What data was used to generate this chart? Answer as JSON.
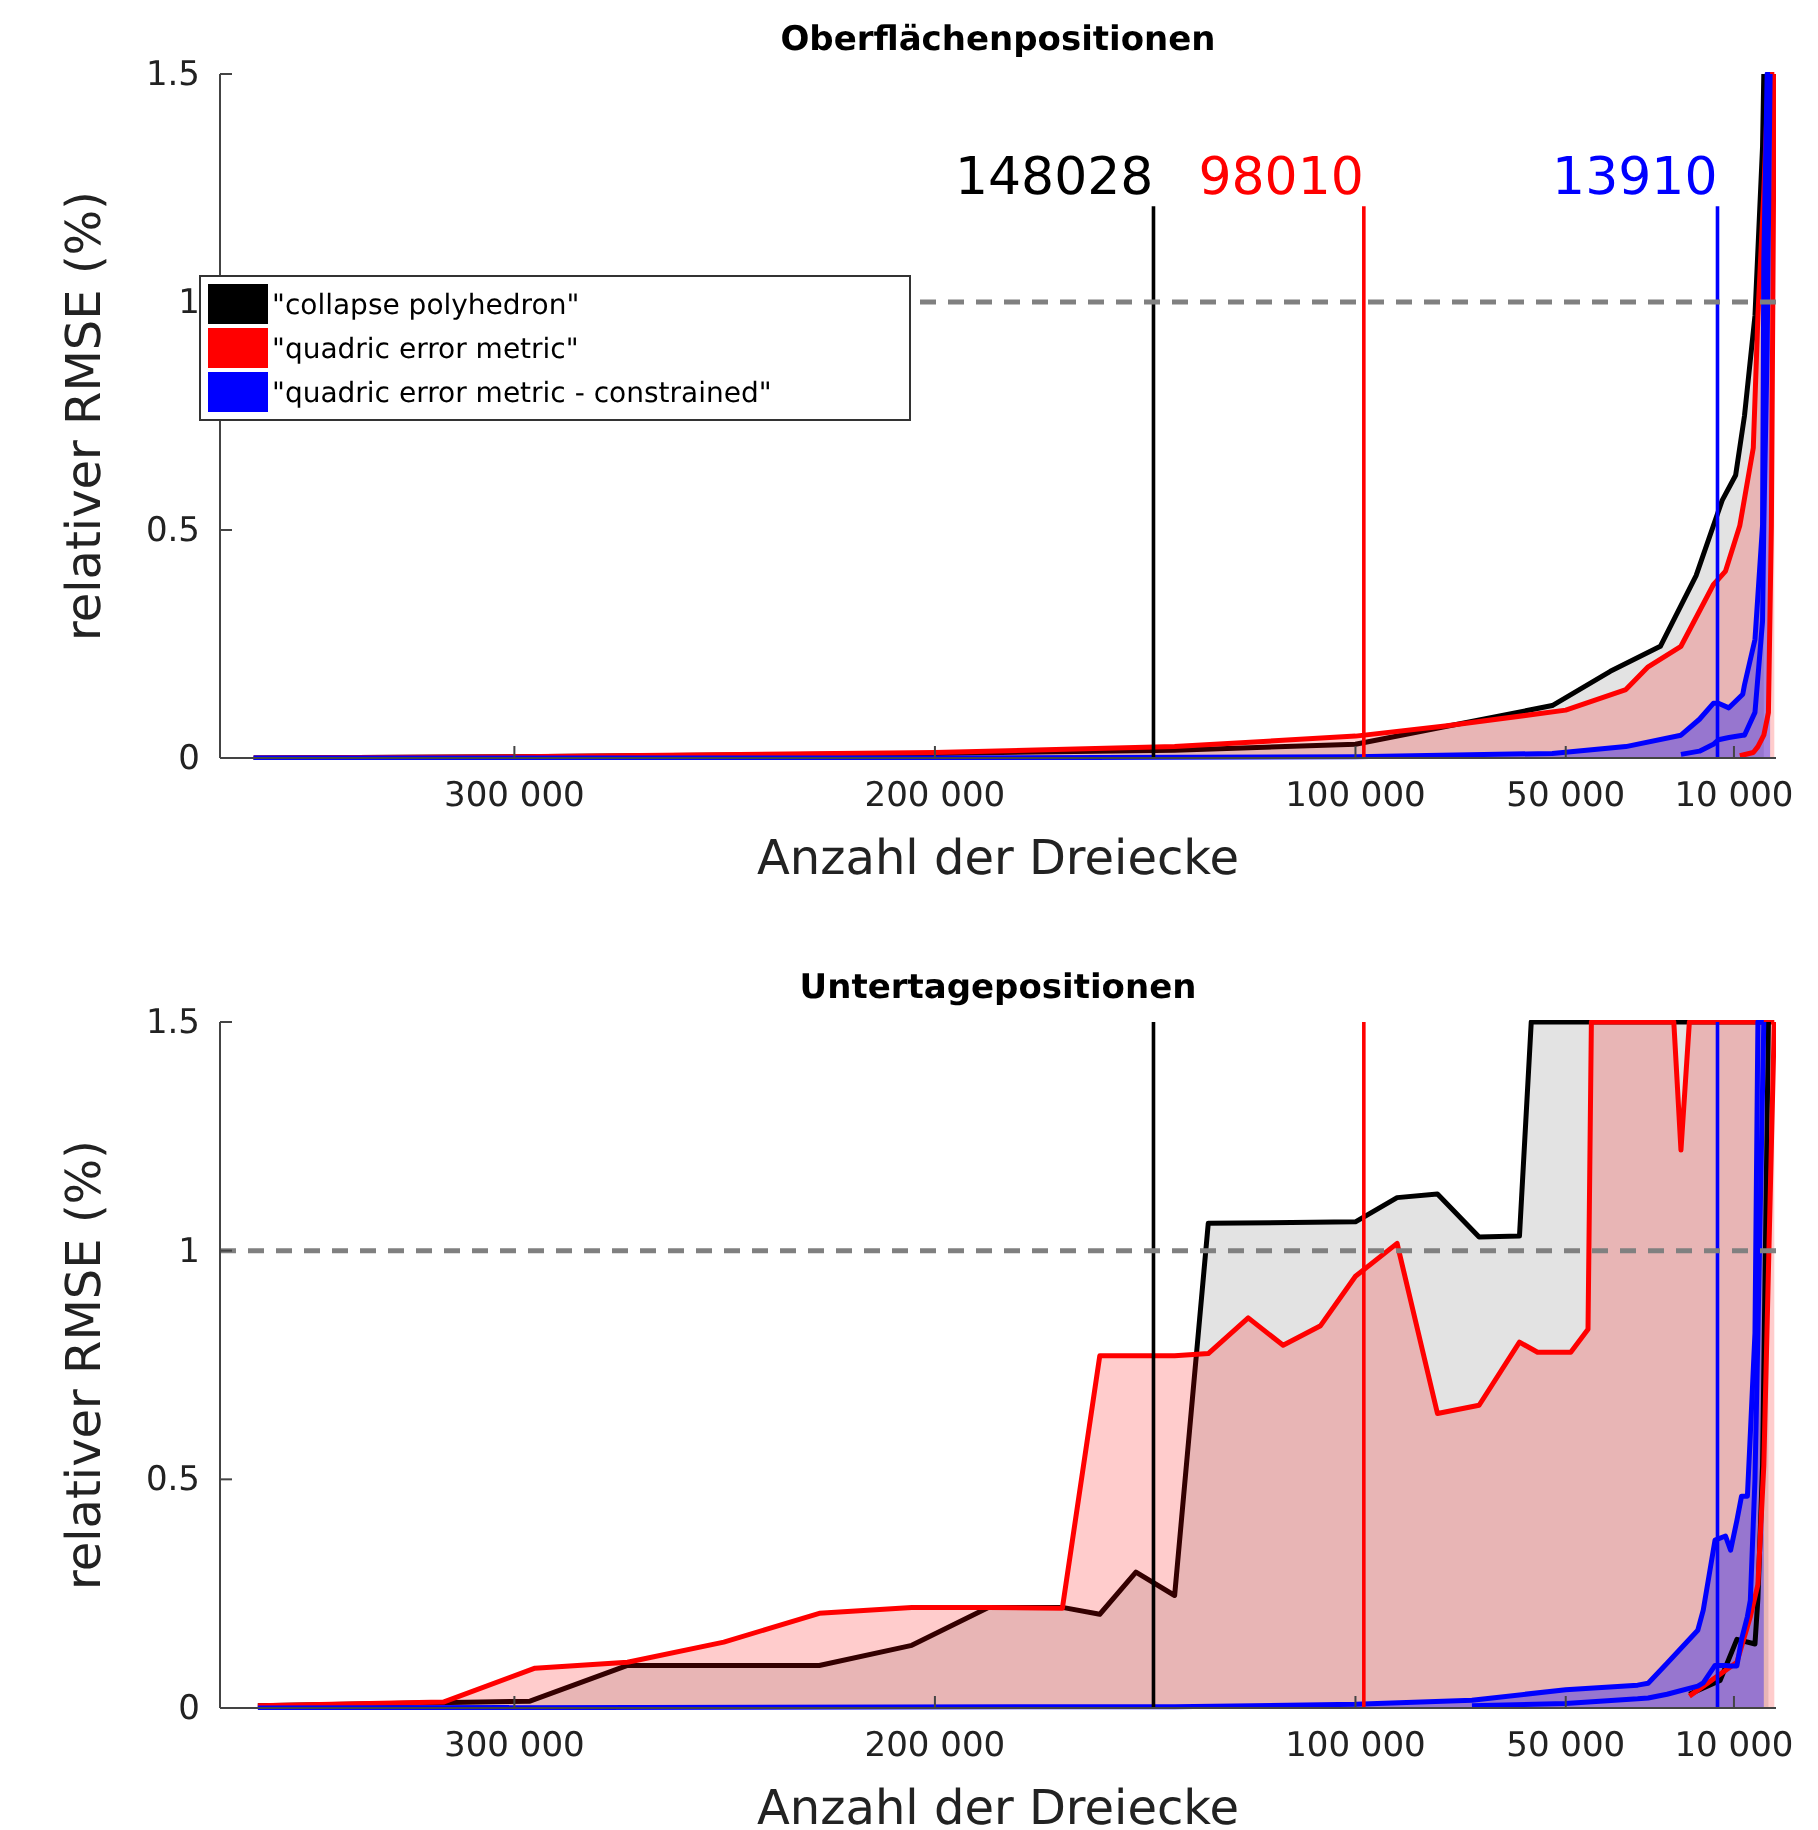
{
  "chart_data": [
    {
      "type": "area",
      "title": "Oberflächenpositionen",
      "xlabel": "Anzahl der Dreiecke",
      "ylabel": "relativer RMSE (%)",
      "xlim": [
        370000,
        0
      ],
      "ylim": [
        0,
        1.5
      ],
      "xticks": [
        {
          "value": 300000,
          "label": "300 000"
        },
        {
          "value": 200000,
          "label": "200 000"
        },
        {
          "value": 100000,
          "label": "100 000"
        },
        {
          "value": 50000,
          "label": "50 000"
        },
        {
          "value": 10000,
          "label": "10 000"
        }
      ],
      "yticks": [
        0,
        0.5,
        1,
        1.5
      ],
      "grid": false,
      "legend": "left",
      "ref_lines": [
        {
          "axis": "x",
          "value": 148028,
          "label": "148028",
          "color": "#000000"
        },
        {
          "axis": "x",
          "value": 98010,
          "label": "98010",
          "color": "#ff0000"
        },
        {
          "axis": "x",
          "value": 13910,
          "label": "13910",
          "color": "#0000ff"
        },
        {
          "axis": "y",
          "value": 1,
          "color": "#808080",
          "line_style": "dashed"
        }
      ],
      "series": [
        {
          "name": "\"collapse polyhedron\"",
          "color": "#000000",
          "x": [
            362000,
            300000,
            200000,
            143000,
            100000,
            53200,
            39400,
            27500,
            19000,
            12800,
            9600,
            7500,
            5000,
            3200,
            2900
          ],
          "values": [
            0,
            0.003,
            0.01,
            0.017,
            0.03,
            0.115,
            0.19,
            0.245,
            0.4,
            0.565,
            0.62,
            0.75,
            0.97,
            1.34,
            1.5
          ]
        },
        {
          "name": "\"quadric error metric\"",
          "color": "#ff0000",
          "x": [
            362000,
            300000,
            200000,
            143000,
            100000,
            78700,
            50000,
            35700,
            30400,
            22600,
            14900,
            12000,
            8600,
            5400,
            4300,
            2900,
            1800,
            1100,
            400
          ],
          "values": [
            0,
            0.003,
            0.012,
            0.025,
            0.048,
            0.07,
            0.105,
            0.15,
            0.2,
            0.245,
            0.38,
            0.41,
            0.51,
            0.68,
            0.97,
            1.24,
            1.5,
            1.5,
            1.5
          ]
        },
        {
          "name": "\"quadric error metric - constrained\"",
          "color": "#0000ff",
          "x": [
            362000,
            200000,
            100000,
            53200,
            35700,
            22600,
            18200,
            14900,
            13700,
            11200,
            7900,
            7500,
            5000,
            3200,
            2900,
            2100,
            1400
          ],
          "values": [
            0,
            0,
            0.003,
            0.01,
            0.025,
            0.05,
            0.085,
            0.12,
            0.12,
            0.11,
            0.14,
            0.16,
            0.26,
            0.51,
            1.09,
            1.5,
            1.5
          ]
        },
        {
          "type": "line",
          "color": "#ff0000",
          "x": [
            8600,
            5400,
            4300,
            2900,
            1800,
            1100,
            400
          ],
          "values": [
            0.005,
            0.012,
            0.025,
            0.05,
            0.1,
            0.51,
            1.5
          ]
        },
        {
          "type": "line",
          "color": "#0000ff",
          "x": [
            22600,
            18200,
            14900,
            13700,
            11200,
            7900,
            7500,
            5000,
            3200,
            2900,
            2100,
            1400
          ],
          "values": [
            0.008,
            0.015,
            0.03,
            0.04,
            0.045,
            0.05,
            0.05,
            0.1,
            0.3,
            0.51,
            0.9,
            1.5
          ]
        }
      ]
    },
    {
      "type": "area",
      "title": "Untertagepositionen",
      "xlabel": "Anzahl der Dreiecke",
      "ylabel": "relativer RMSE (%)",
      "xlim": [
        370000,
        0
      ],
      "ylim": [
        0,
        1.5
      ],
      "xticks": [
        {
          "value": 300000,
          "label": "300 000"
        },
        {
          "value": 200000,
          "label": "200 000"
        },
        {
          "value": 100000,
          "label": "100 000"
        },
        {
          "value": 50000,
          "label": "50 000"
        },
        {
          "value": 10000,
          "label": "10 000"
        }
      ],
      "yticks": [
        0,
        0.5,
        1,
        1.5
      ],
      "grid": false,
      "legend": false,
      "ref_lines": [
        {
          "axis": "x",
          "value": 148028,
          "color": "#000000"
        },
        {
          "axis": "x",
          "value": 98010,
          "color": "#ff0000"
        },
        {
          "axis": "x",
          "value": 13910,
          "color": "#0000ff"
        },
        {
          "axis": "y",
          "value": 1,
          "color": "#808080",
          "line_style": "dashed"
        }
      ],
      "series": [
        {
          "color": "#000000",
          "x": [
            361000,
            296300,
            273100,
            227500,
            205500,
            187300,
            169700,
            160800,
            152200,
            143000,
            135000,
            100000,
            90100,
            80500,
            70600,
            61000,
            58200,
            20600,
            13300,
            9300,
            5000,
            4300,
            3200,
            1800
          ],
          "values": [
            0.005,
            0.015,
            0.093,
            0.093,
            0.137,
            0.22,
            0.22,
            0.205,
            0.297,
            0.246,
            1.06,
            1.063,
            1.116,
            1.124,
            1.03,
            1.032,
            1.5,
            1.5,
            1.5,
            1.5,
            1.5,
            1.5,
            1.5,
            1.5
          ]
        },
        {
          "color": "#ff0000",
          "x": [
            361000,
            316900,
            295100,
            273100,
            250200,
            227500,
            205500,
            187300,
            169700,
            160800,
            143000,
            135000,
            125500,
            117200,
            108300,
            100000,
            90100,
            80500,
            70600,
            61000,
            56700,
            48800,
            44700,
            43900,
            24300,
            22600,
            20600,
            9300,
            6100,
            4300,
            2900,
            400
          ],
          "values": [
            0.005,
            0.013,
            0.087,
            0.1,
            0.144,
            0.207,
            0.22,
            0.22,
            0.218,
            0.77,
            0.77,
            0.775,
            0.853,
            0.793,
            0.836,
            0.944,
            1.016,
            0.644,
            0.662,
            0.8,
            0.778,
            0.778,
            0.828,
            1.5,
            1.5,
            1.22,
            1.5,
            1.5,
            1.5,
            1.5,
            1.5,
            1.5
          ]
        },
        {
          "color": "#0000ff",
          "x": [
            361000,
            143000,
            100000,
            72300,
            50000,
            32900,
            30400,
            25900,
            18600,
            17300,
            14500,
            12000,
            10800,
            9300,
            8200,
            6800,
            6100,
            5000,
            4300,
            2900
          ],
          "values": [
            0,
            0.003,
            0.008,
            0.017,
            0.04,
            0.05,
            0.054,
            0.098,
            0.17,
            0.214,
            0.367,
            0.376,
            0.345,
            0.41,
            0.463,
            0.463,
            0.6,
            0.82,
            1.5,
            1.5
          ]
        },
        {
          "type": "line",
          "color": "#000000",
          "x": [
            20600,
            13300,
            9300,
            5000,
            4300,
            3200,
            1800
          ],
          "values": [
            0.03,
            0.06,
            0.15,
            0.14,
            0.24,
            0.53,
            1.5
          ]
        },
        {
          "type": "line",
          "color": "#ff0000",
          "x": [
            20600,
            9300,
            6100,
            4300,
            2900,
            400
          ],
          "values": [
            0.026,
            0.1,
            0.2,
            0.27,
            0.53,
            1.5
          ]
        },
        {
          "type": "line",
          "color": "#0000ff",
          "x": [
            72300,
            50000,
            32900,
            30400,
            25900,
            18600,
            17300,
            14500,
            12000,
            10800,
            9300,
            8200,
            6800,
            6100,
            5000,
            4300,
            2900
          ],
          "values": [
            0.005,
            0.01,
            0.02,
            0.022,
            0.03,
            0.048,
            0.055,
            0.093,
            0.093,
            0.092,
            0.092,
            0.15,
            0.2,
            0.236,
            0.5,
            0.82,
            1.5
          ]
        }
      ]
    }
  ]
}
